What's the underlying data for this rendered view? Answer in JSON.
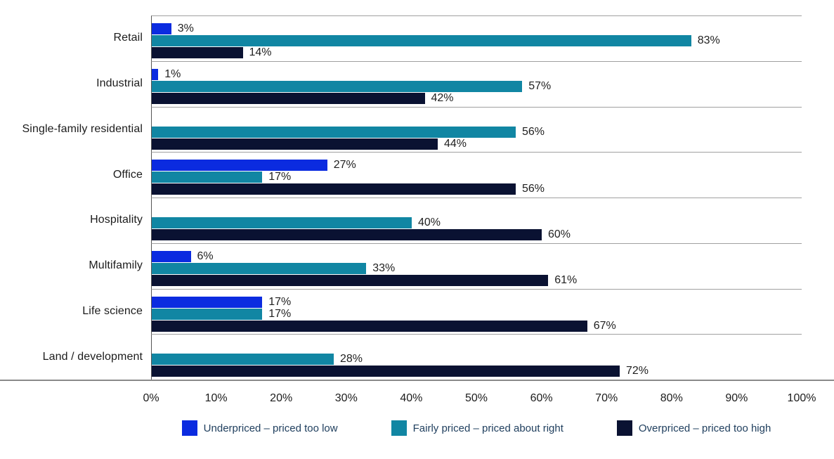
{
  "chart_data": {
    "type": "bar",
    "orientation": "horizontal",
    "title": "",
    "categories": [
      "Retail",
      "Industrial",
      "Single-family residential",
      "Office",
      "Hospitality",
      "Multifamily",
      "Life science",
      "Land / development"
    ],
    "series": [
      {
        "name": "Underpriced – priced too low",
        "color": "#0b2be0",
        "values": [
          3,
          1,
          0,
          27,
          0,
          6,
          17,
          0
        ]
      },
      {
        "name": "Fairly priced – priced about right",
        "color": "#1186a3",
        "values": [
          83,
          57,
          56,
          17,
          40,
          33,
          17,
          28
        ]
      },
      {
        "name": "Overpriced – priced too high",
        "color": "#0a1232",
        "values": [
          14,
          42,
          44,
          56,
          60,
          61,
          67,
          72
        ]
      }
    ],
    "value_suffix": "%",
    "xlim": [
      0,
      100
    ],
    "x_ticks": [
      "0%",
      "10%",
      "20%",
      "30%",
      "40%",
      "50%",
      "60%",
      "70%",
      "80%",
      "90%",
      "100%"
    ],
    "grid": "horizontal-band-separators",
    "legend_position": "bottom",
    "zero_value_bars_hidden": true
  },
  "colors": {
    "background": "#ffffff",
    "band_separator": "#a0a0a0",
    "axis_left": "#555555",
    "axis_bottom": "#8a8a8a",
    "label_text": "#1f1f1f",
    "legend_text": "#21405f"
  }
}
